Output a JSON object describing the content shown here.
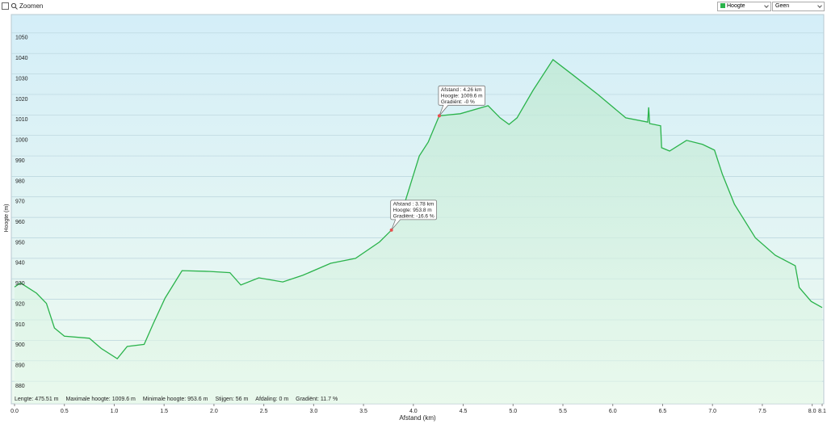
{
  "controls": {
    "zoom_label": "Zoomen",
    "series_select": "Hoogte",
    "overlay_select": "Geen"
  },
  "chart_data": {
    "type": "line",
    "x_label": "Afstand  (km)",
    "y_label": "Hoogte (m)",
    "x": [
      0,
      0.06,
      0.22,
      0.32,
      0.4,
      0.5,
      0.75,
      0.87,
      1.03,
      1.13,
      1.3,
      1.39,
      1.51,
      1.68,
      1.96,
      2.16,
      2.27,
      2.45,
      2.69,
      2.89,
      3.17,
      3.42,
      3.66,
      3.78,
      3.9,
      4.06,
      4.15,
      4.26,
      4.47,
      4.75,
      4.87,
      4.96,
      5.04,
      5.2,
      5.4,
      5.6,
      5.85,
      6.13,
      6.35,
      6.36,
      6.37,
      6.48,
      6.49,
      6.57,
      6.74,
      6.9,
      7.02,
      7.1,
      7.22,
      7.43,
      7.63,
      7.83,
      7.87,
      7.99,
      8.1
    ],
    "series": [
      {
        "name": "Hoogte",
        "color": "#2ab34b",
        "values": [
          926,
          928,
          923,
          918,
          906,
          902,
          901,
          896,
          891,
          897,
          898,
          908,
          920.6,
          934,
          933.6,
          933,
          927,
          930.5,
          928.5,
          931.7,
          937.6,
          940,
          948,
          953.8,
          965,
          990,
          996.8,
          1009.6,
          1010.6,
          1014.5,
          1008.6,
          1005.4,
          1008.6,
          1022,
          1037,
          1029.5,
          1020,
          1008.6,
          1006.5,
          1013.7,
          1005.8,
          1004.7,
          994,
          992.4,
          997.6,
          995.6,
          992.8,
          981,
          966.4,
          950,
          941.5,
          936.4,
          925.8,
          919,
          916
        ]
      }
    ],
    "xlim": [
      0,
      8.1
    ],
    "ylim": [
      869,
      1059
    ],
    "xticks": [
      {
        "value": 0,
        "label": "0.0"
      },
      0.5,
      {
        "value": 1,
        "label": "1.0"
      },
      1.5,
      {
        "value": 2,
        "label": "2.0"
      },
      2.5,
      {
        "value": 3,
        "label": "3.0"
      },
      3.5,
      {
        "value": 4,
        "label": "4.0"
      },
      4.5,
      {
        "value": 5,
        "label": "5.0"
      },
      5.5,
      {
        "value": 6,
        "label": "6.0"
      },
      6.5,
      {
        "value": 7,
        "label": "7.0"
      },
      7.5,
      {
        "value": 8,
        "label": "8.0"
      },
      8.1
    ],
    "yticks": [
      880,
      890,
      900,
      910,
      920,
      930,
      940,
      950,
      960,
      970,
      980,
      990,
      1000,
      1010,
      1020,
      1030,
      1040,
      1050
    ],
    "grid": true,
    "annotations": [
      {
        "x": 4.26,
        "y": 1009.6,
        "lines": [
          "Afstand   : 4.26 km",
          "Hoogte: 1009.6 m",
          "Gradiënt: -0 %"
        ]
      },
      {
        "x": 3.78,
        "y": 953.8,
        "lines": [
          "Afstand   : 3.78 km",
          "Hoogte: 953.8 m",
          "Gradiënt: -16.6 %"
        ]
      }
    ],
    "stats": [
      "Lengte: 475.51 m",
      "Maximale hoogte: 1009.6 m",
      "Minimale hoogte: 953.6 m",
      "Stijgen: 56 m",
      "Afdaling: 0 m",
      "Gradiënt: 11.7 %"
    ]
  }
}
